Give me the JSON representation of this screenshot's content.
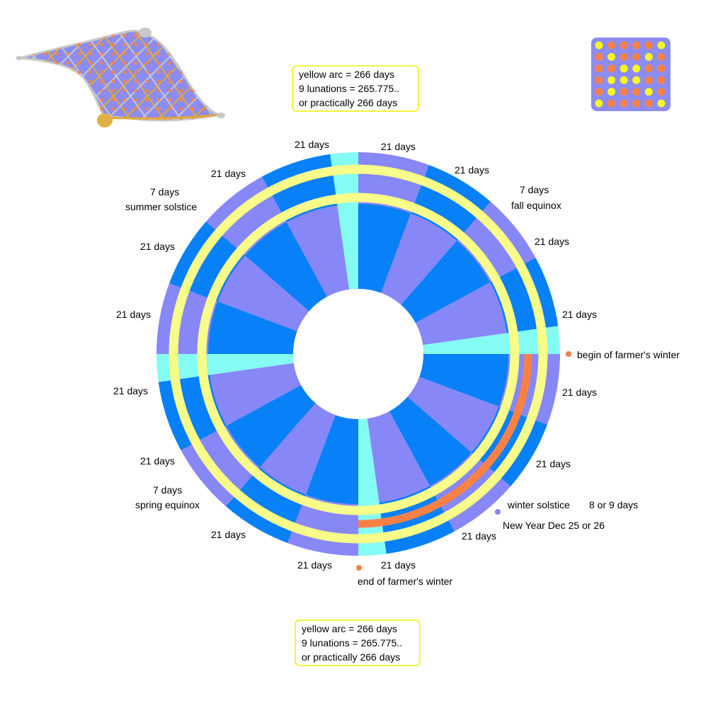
{
  "colors": {
    "blue": "#0780f8",
    "lavender": "#8787f8",
    "cyan": "#84fcf4",
    "yellow": "#f8fc88",
    "orange": "#fa8146",
    "carpet_fill": "#8c8cf2",
    "carpet_grid": "#e0a83a",
    "carpet_tassel": "#c8c8c8"
  },
  "notes": {
    "top": [
      "yellow arc = 266 days",
      "9 lunations = 265.775..",
      "or practically 266 days"
    ],
    "bottom": [
      "yellow arc = 266 days",
      "9 lunations = 265.775..",
      "or practically 266 days"
    ]
  },
  "labels": {
    "period_21": "21 days",
    "period_7": "7 days",
    "summer_solstice": "summer solstice",
    "fall_equinox": "fall equinox",
    "spring_equinox": "spring equinox",
    "winter_solstice": "winter solstice",
    "winter_solstice_length": "8 or 9 days",
    "new_year": "New Year  Dec 25 or 26",
    "begin_farmers_winter": "begin of farmer's winter",
    "end_farmers_winter": "end of farmer's winter"
  },
  "icons": {
    "carpet": "flying-carpet-icon",
    "grid": "bead-grid-icon"
  },
  "bead_grid": [
    [
      "yellow",
      "orange",
      "orange",
      "orange",
      "orange",
      "yellow"
    ],
    [
      "orange",
      "yellow",
      "orange",
      "orange",
      "yellow",
      "orange"
    ],
    [
      "orange",
      "orange",
      "yellow",
      "yellow",
      "orange",
      "orange"
    ],
    [
      "orange",
      "yellow",
      "yellow",
      "yellow",
      "orange",
      "orange"
    ],
    [
      "orange",
      "yellow",
      "orange",
      "orange",
      "yellow",
      "orange"
    ],
    [
      "yellow",
      "orange",
      "orange",
      "orange",
      "orange",
      "yellow"
    ]
  ]
}
